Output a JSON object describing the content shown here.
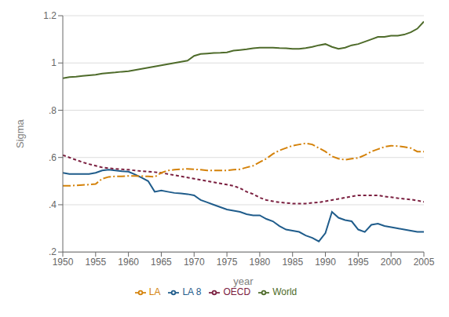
{
  "chart_data": {
    "type": "line",
    "xlabel": "year",
    "ylabel": "Sigma",
    "x": [
      1950,
      1951,
      1952,
      1953,
      1954,
      1955,
      1956,
      1957,
      1958,
      1959,
      1960,
      1961,
      1962,
      1963,
      1964,
      1965,
      1966,
      1967,
      1968,
      1969,
      1970,
      1971,
      1972,
      1973,
      1974,
      1975,
      1976,
      1977,
      1978,
      1979,
      1980,
      1981,
      1982,
      1983,
      1984,
      1985,
      1986,
      1987,
      1988,
      1989,
      1990,
      1991,
      1992,
      1993,
      1994,
      1995,
      1996,
      1997,
      1998,
      1999,
      2000,
      2001,
      2002,
      2003,
      2004,
      2005
    ],
    "series": [
      {
        "name": "LA 8",
        "color": "#1F5C8B",
        "line_style": "solid",
        "values": [
          0.535,
          0.53,
          0.53,
          0.53,
          0.53,
          0.535,
          0.545,
          0.548,
          0.545,
          0.542,
          0.54,
          0.528,
          0.515,
          0.5,
          0.455,
          0.46,
          0.455,
          0.45,
          0.448,
          0.445,
          0.44,
          0.42,
          0.41,
          0.4,
          0.39,
          0.38,
          0.375,
          0.37,
          0.36,
          0.355,
          0.355,
          0.34,
          0.33,
          0.31,
          0.295,
          0.29,
          0.285,
          0.27,
          0.26,
          0.245,
          0.28,
          0.37,
          0.345,
          0.335,
          0.33,
          0.295,
          0.285,
          0.315,
          0.32,
          0.31,
          0.305,
          0.3,
          0.295,
          0.29,
          0.285,
          0.285
        ]
      },
      {
        "name": "OECD",
        "color": "#7B2040",
        "line_style": "dashed",
        "values": [
          0.61,
          0.6,
          0.59,
          0.58,
          0.572,
          0.565,
          0.558,
          0.555,
          0.552,
          0.55,
          0.548,
          0.545,
          0.542,
          0.54,
          0.538,
          0.535,
          0.53,
          0.525,
          0.52,
          0.515,
          0.51,
          0.505,
          0.5,
          0.495,
          0.49,
          0.485,
          0.48,
          0.47,
          0.455,
          0.445,
          0.43,
          0.42,
          0.415,
          0.41,
          0.408,
          0.405,
          0.405,
          0.405,
          0.408,
          0.41,
          0.415,
          0.42,
          0.425,
          0.43,
          0.435,
          0.44,
          0.44,
          0.44,
          0.44,
          0.435,
          0.432,
          0.428,
          0.425,
          0.422,
          0.418,
          0.412
        ]
      },
      {
        "name": "World",
        "color": "#4E6B2A",
        "line_style": "solid",
        "values": [
          0.935,
          0.94,
          0.942,
          0.945,
          0.948,
          0.95,
          0.955,
          0.958,
          0.96,
          0.963,
          0.965,
          0.97,
          0.975,
          0.98,
          0.985,
          0.99,
          0.995,
          1.0,
          1.005,
          1.01,
          1.03,
          1.038,
          1.04,
          1.042,
          1.043,
          1.045,
          1.052,
          1.055,
          1.058,
          1.062,
          1.065,
          1.065,
          1.065,
          1.063,
          1.062,
          1.06,
          1.06,
          1.063,
          1.068,
          1.075,
          1.08,
          1.068,
          1.06,
          1.065,
          1.075,
          1.08,
          1.09,
          1.1,
          1.11,
          1.11,
          1.115,
          1.115,
          1.12,
          1.13,
          1.145,
          1.175
        ]
      },
      {
        "name": "LA",
        "color": "#D4820A",
        "line_style": "dashdot",
        "values": [
          0.48,
          0.48,
          0.482,
          0.484,
          0.485,
          0.488,
          0.51,
          0.518,
          0.52,
          0.52,
          0.522,
          0.522,
          0.521,
          0.52,
          0.518,
          0.535,
          0.545,
          0.548,
          0.55,
          0.552,
          0.55,
          0.548,
          0.545,
          0.545,
          0.545,
          0.545,
          0.548,
          0.55,
          0.558,
          0.565,
          0.58,
          0.595,
          0.615,
          0.63,
          0.64,
          0.65,
          0.655,
          0.66,
          0.655,
          0.64,
          0.625,
          0.605,
          0.595,
          0.59,
          0.595,
          0.598,
          0.61,
          0.625,
          0.635,
          0.645,
          0.65,
          0.648,
          0.645,
          0.64,
          0.625,
          0.625
        ]
      }
    ],
    "xlim": [
      1950,
      2005
    ],
    "xticks": [
      1950,
      1955,
      1960,
      1965,
      1970,
      1975,
      1980,
      1985,
      1990,
      1995,
      2000,
      2005
    ],
    "ylim": [
      0.2,
      1.2
    ],
    "yticks": [
      {
        "value": 0.2,
        "label": ".2"
      },
      {
        "value": 0.4,
        "label": ".4"
      },
      {
        "value": 0.6,
        "label": ".6"
      },
      {
        "value": 0.8,
        "label": ".8"
      },
      1,
      1.2
    ],
    "grid": true,
    "legend": "bottom"
  }
}
